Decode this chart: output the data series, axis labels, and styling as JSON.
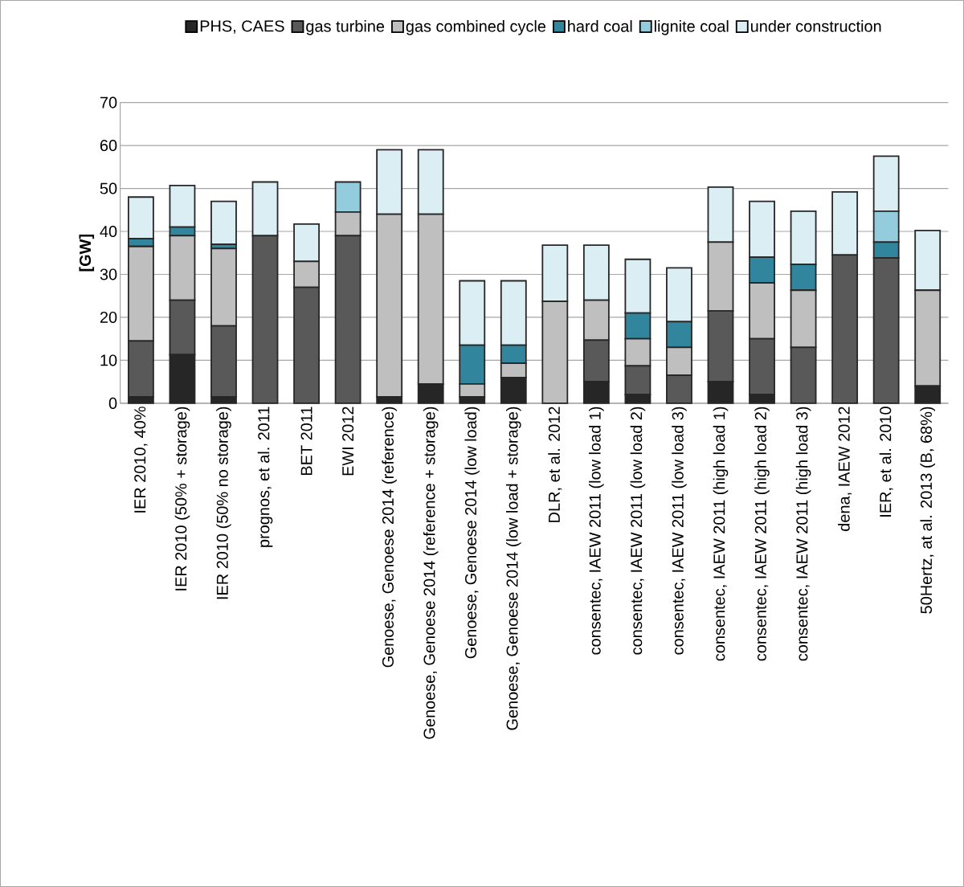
{
  "chart_data": {
    "type": "bar",
    "stacked": true,
    "ylabel": "[GW]",
    "categories": [
      "IER 2010, 40%",
      "IER 2010 (50% + storage)",
      "IER 2010 (50% no storage)",
      "prognos, et al. 2011",
      "BET 2011",
      "EWI 2012",
      "Genoese, Genoese 2014 (reference)",
      "Genoese, Genoese 2014 (reference + storage)",
      "Genoese, Genoese 2014 (low load)",
      "Genoese, Genoese 2014 (low load + storage)",
      "DLR, et al. 2012",
      "consentec, IAEW 2011 (low load 1)",
      "consentec, IAEW 2011 (low load 2)",
      "consentec, IAEW 2011 (low load 3)",
      "consentec, IAEW 2011 (high load 1)",
      "consentec, IAEW 2011 (high load 2)",
      "consentec, IAEW 2011 (high load 3)",
      "dena, IAEW 2012",
      "IER, et al.  2010",
      "50Hertz, at al. 2013 (B, 68%)"
    ],
    "series": [
      {
        "name": "PHS, CAES",
        "color": "#262626",
        "values": [
          1.5,
          11.3,
          1.5,
          0,
          0,
          0,
          1.5,
          4.5,
          1.5,
          6,
          0,
          5,
          2,
          0,
          5,
          2,
          0,
          0,
          0,
          4
        ]
      },
      {
        "name": "gas turbine",
        "color": "#595959",
        "values": [
          13,
          12.7,
          16.5,
          39,
          27,
          39,
          0,
          0,
          0,
          0,
          0,
          9.7,
          6.7,
          6.5,
          16.5,
          13,
          13,
          34.5,
          33.8,
          0
        ]
      },
      {
        "name": "gas combined cycle",
        "color": "#bfbfbf",
        "values": [
          22,
          15,
          18,
          0,
          6,
          5.5,
          42.5,
          39.5,
          3,
          3.3,
          23.7,
          9.3,
          6.3,
          6.5,
          16,
          13,
          13.3,
          0,
          0,
          22.3
        ]
      },
      {
        "name": "hard coal",
        "color": "#31859c",
        "values": [
          1.8,
          2,
          1,
          0,
          0,
          0,
          0,
          0,
          9,
          4.2,
          0,
          0,
          6,
          6,
          0,
          6,
          6,
          0,
          3.7,
          0
        ]
      },
      {
        "name": "lignite coal",
        "color": "#93cddd",
        "values": [
          0,
          0,
          0,
          0,
          0,
          7,
          0,
          0,
          0,
          0,
          0,
          0,
          0,
          0,
          0,
          0,
          0,
          0,
          7.2,
          0
        ]
      },
      {
        "name": "under construction",
        "color": "#dbeef4",
        "values": [
          9.7,
          9.7,
          10,
          12.5,
          8.7,
          0,
          15,
          15,
          15,
          15,
          13.1,
          12.8,
          12.5,
          12.5,
          12.8,
          13,
          12.4,
          14.7,
          12.8,
          13.9
        ]
      }
    ],
    "ylim": [
      0,
      70
    ],
    "yticks": [
      0,
      10,
      20,
      30,
      40,
      50,
      60,
      70
    ],
    "grid": "y",
    "legend": "top"
  }
}
